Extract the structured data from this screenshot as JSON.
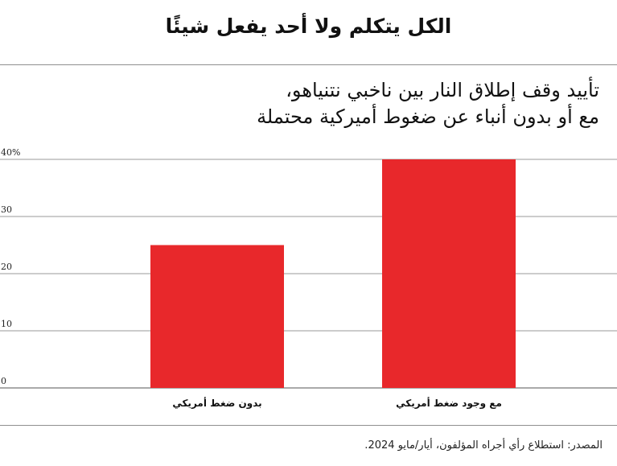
{
  "header": {
    "headline": "الكل يتكلم ولا أحد يفعل شيئًا"
  },
  "chart_data": {
    "type": "bar",
    "title_lines": [
      "تأييد وقف إطلاق النار بين ناخبي نتنياهو،",
      "مع أو بدون أنباء عن ضغوط أميركية محتملة"
    ],
    "categories": [
      "بدون ضغط أمريكي",
      "مع وجود ضغط أمريكي"
    ],
    "values": [
      25,
      40
    ],
    "ylim": [
      0,
      40
    ],
    "yticks": [
      0,
      10,
      20,
      30,
      40
    ],
    "ytick_labels": [
      "0",
      "10",
      "20",
      "30",
      "40%"
    ],
    "grid": true,
    "bar_color": "#e8282b",
    "xlabel": "",
    "ylabel": ""
  },
  "footer": {
    "source": "المصدر: استطلاع رأي أجراه المؤلفون، أيار/مايو 2024."
  }
}
